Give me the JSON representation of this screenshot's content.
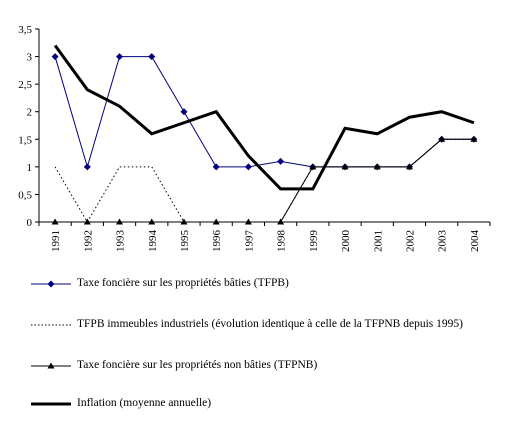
{
  "chart_data": {
    "type": "line",
    "categories": [
      "1991",
      "1992",
      "1993",
      "1994",
      "1995",
      "1996",
      "1997",
      "1998",
      "1999",
      "2000",
      "2001",
      "2002",
      "2003",
      "2004"
    ],
    "ylim": [
      0,
      3.5
    ],
    "yticks": [
      "0",
      "0,5",
      "1",
      "1,5",
      "2",
      "2,5",
      "3",
      "3,5"
    ],
    "series": [
      {
        "name": "Taxe foncière sur les propriétés bâties (TFPB)",
        "style": "diamond",
        "color": "#000080",
        "values": [
          3,
          1,
          3,
          3,
          2,
          1,
          1,
          1.1,
          1,
          1,
          1,
          1,
          1.5,
          1.5
        ]
      },
      {
        "name": "TFPB immeubles industriels (évolution identique à celle de la TFPNB depuis 1995)",
        "style": "dotted",
        "color": "#000000",
        "values": [
          1,
          0,
          1,
          1,
          0,
          0,
          0,
          0,
          1,
          1,
          1,
          1,
          1.5,
          1.5
        ]
      },
      {
        "name": "Taxe foncière sur les propriétés non bâties (TFPNB)",
        "style": "triangle",
        "color": "#000000",
        "values": [
          0,
          0,
          0,
          0,
          0,
          0,
          0,
          0,
          1,
          1,
          1,
          1,
          1.5,
          1.5
        ]
      },
      {
        "name": "Inflation (moyenne annuelle)",
        "style": "thick",
        "color": "#000000",
        "values": [
          3.2,
          2.4,
          2.1,
          1.6,
          1.8,
          2.0,
          1.2,
          0.6,
          0.6,
          1.7,
          1.6,
          1.9,
          2.0,
          1.8
        ]
      }
    ],
    "legend_position": "bottom",
    "grid": false
  }
}
